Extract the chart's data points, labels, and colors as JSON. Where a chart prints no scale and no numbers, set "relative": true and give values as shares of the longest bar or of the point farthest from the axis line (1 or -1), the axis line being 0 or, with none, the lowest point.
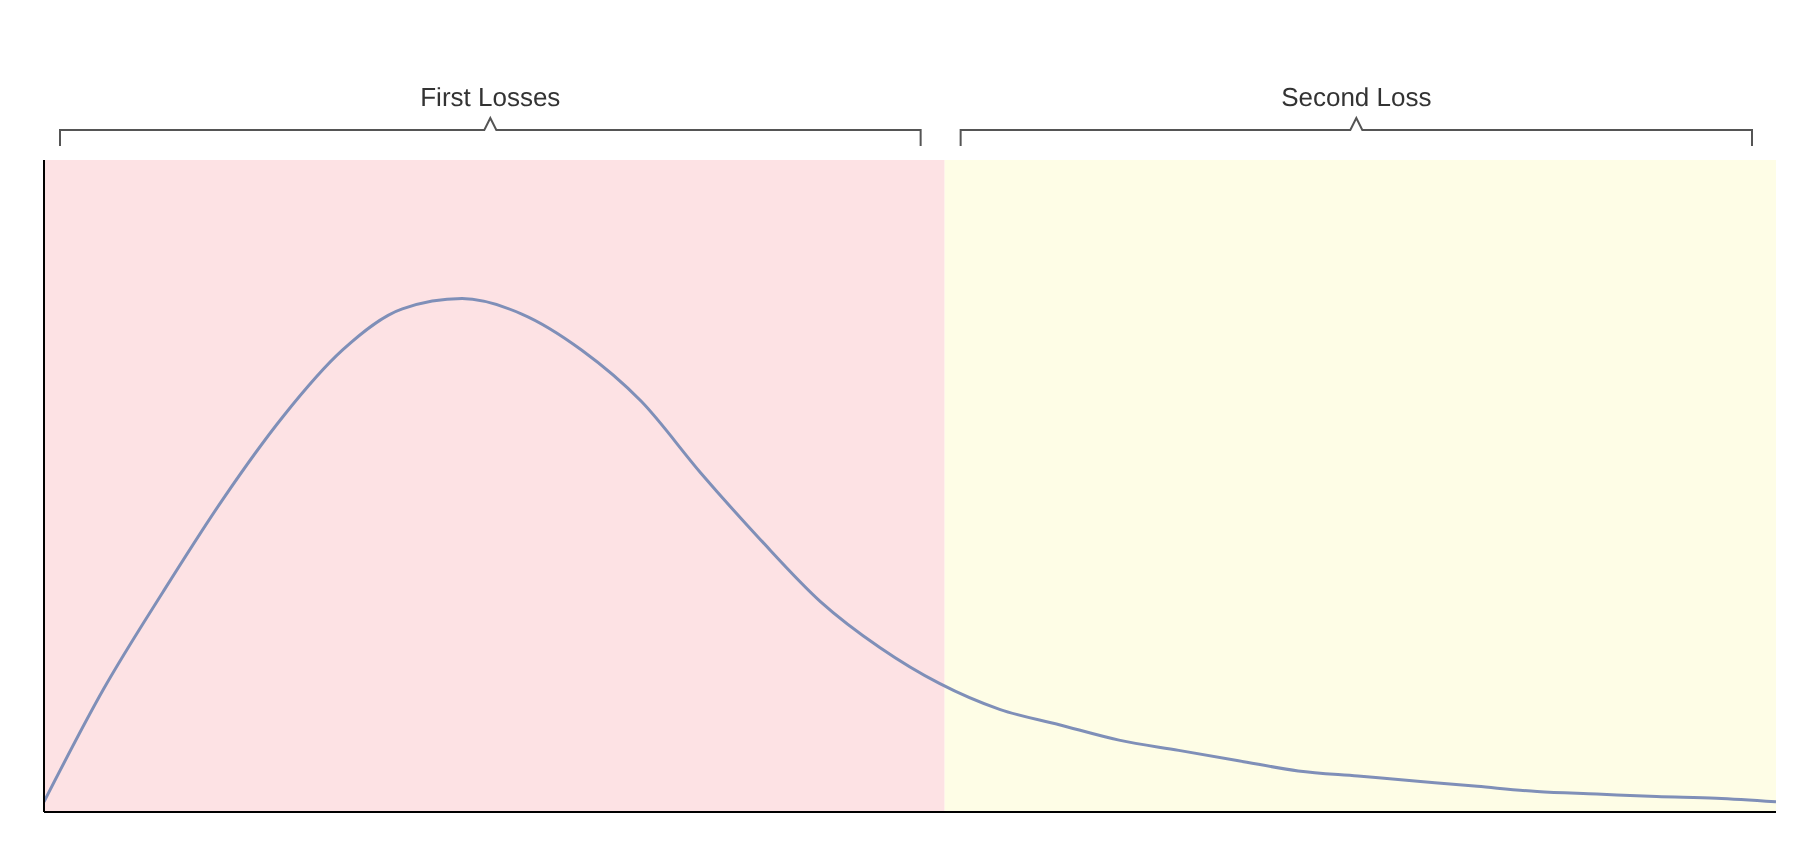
{
  "chart_data": {
    "type": "line",
    "relative": true,
    "categories": [
      null,
      null,
      null,
      null,
      null,
      null,
      null,
      null,
      null,
      null,
      null,
      null,
      null,
      null,
      null,
      null,
      null,
      null,
      null,
      null,
      null,
      null,
      null,
      null,
      null,
      null,
      null,
      null,
      null,
      null
    ],
    "series": [
      {
        "color": "#7f8fb8",
        "values": [
          0.02,
          0.24,
          0.43,
          0.61,
          0.77,
          0.9,
          0.98,
          1.0,
          0.97,
          0.9,
          0.8,
          0.66,
          0.53,
          0.41,
          0.32,
          0.25,
          0.2,
          0.17,
          0.14,
          0.12,
          0.1,
          0.08,
          0.07,
          0.06,
          0.05,
          0.04,
          0.035,
          0.03,
          0.027,
          0.02
        ]
      }
    ],
    "annotations": [
      "First Losses",
      "Second Loss"
    ],
    "marker": "none",
    "line_style": "solid",
    "grid": false,
    "legend": false
  }
}
